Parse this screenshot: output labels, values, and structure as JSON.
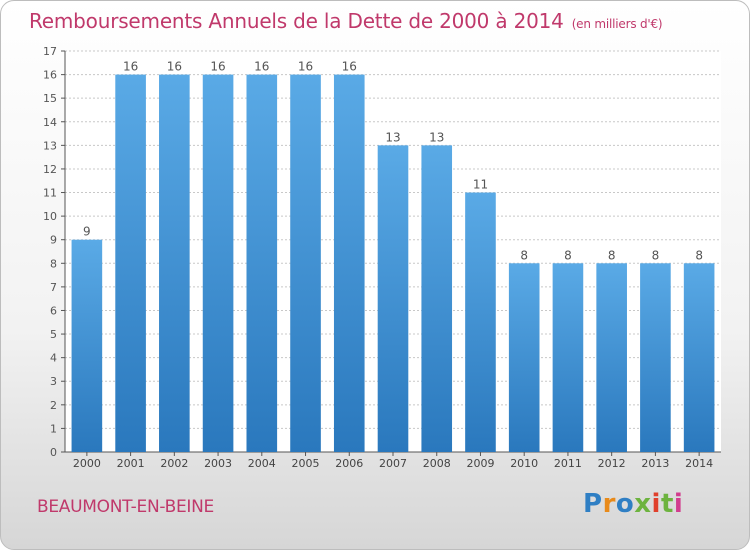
{
  "header": {
    "title": "Remboursements Annuels de la Dette de 2000 à 2014",
    "subtitle": "(en milliers d'€)"
  },
  "footer": {
    "place": "BEAUMONT-EN-BEINE",
    "logo": [
      "P",
      "r",
      "o",
      "x",
      "i",
      "t",
      "i"
    ]
  },
  "colors": {
    "title": "#c0396b",
    "bar_top": "#5aaae6",
    "bar_bottom": "#2a78bd",
    "grid": "#c8c8c8"
  },
  "chart_data": {
    "type": "bar",
    "title": "Remboursements Annuels de la Dette de 2000 à 2014",
    "subtitle": "(en milliers d'€)",
    "categories": [
      "2000",
      "2001",
      "2002",
      "2003",
      "2004",
      "2005",
      "2006",
      "2007",
      "2008",
      "2009",
      "2010",
      "2011",
      "2012",
      "2013",
      "2014"
    ],
    "values": [
      9,
      16,
      16,
      16,
      16,
      16,
      16,
      13,
      13,
      11,
      8,
      8,
      8,
      8,
      8
    ],
    "ylim": [
      0,
      17
    ],
    "yticks": [
      0,
      1,
      2,
      3,
      4,
      5,
      6,
      7,
      8,
      9,
      10,
      11,
      12,
      13,
      14,
      15,
      16,
      17
    ],
    "grid": true,
    "data_labels": true
  }
}
